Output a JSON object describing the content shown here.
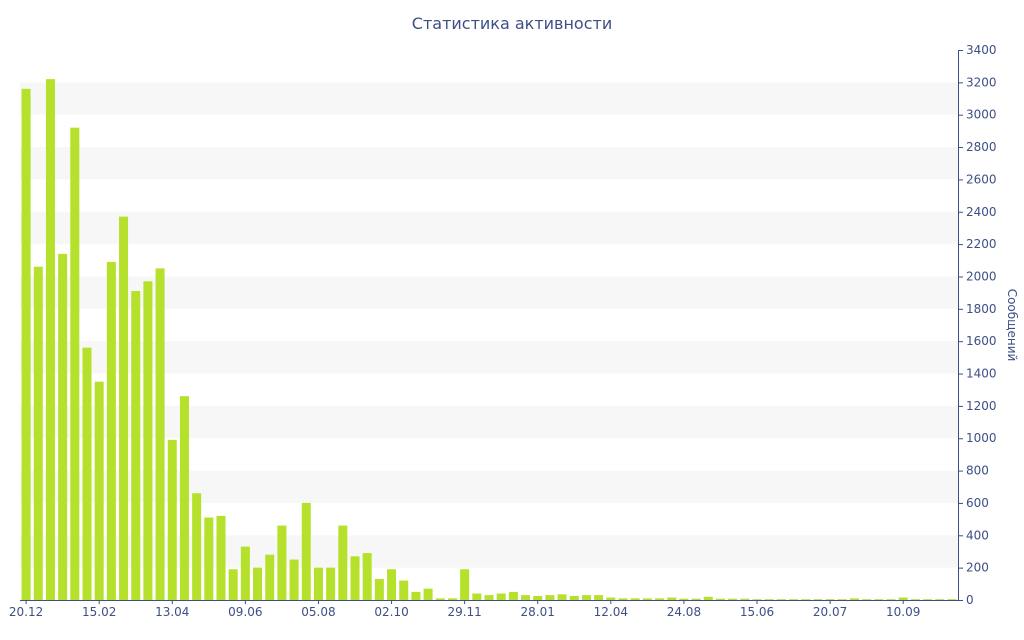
{
  "chart_data": {
    "type": "bar",
    "title": "Статистика активности",
    "xlabel": "",
    "ylabel": "Сообщений",
    "y_axis_side": "right",
    "ylim": [
      0,
      3400
    ],
    "y_ticks": [
      0,
      200,
      400,
      600,
      800,
      1000,
      1200,
      1400,
      1600,
      1800,
      2000,
      2200,
      2400,
      2600,
      2800,
      3000,
      3200,
      3400
    ],
    "grid": "alternating horizontal bands",
    "bar_color": "#b5e02b",
    "band_color": "#f7f7f7",
    "text_color": "#3d4f86",
    "x_tick_labels": [
      {
        "index": 0,
        "label": "20.12"
      },
      {
        "index": 6,
        "label": "15.02"
      },
      {
        "index": 12,
        "label": "13.04"
      },
      {
        "index": 18,
        "label": "09.06"
      },
      {
        "index": 24,
        "label": "05.08"
      },
      {
        "index": 30,
        "label": "02.10"
      },
      {
        "index": 36,
        "label": "29.11"
      },
      {
        "index": 42,
        "label": "28.01"
      },
      {
        "index": 48,
        "label": "12.04"
      },
      {
        "index": 54,
        "label": "24.08"
      },
      {
        "index": 60,
        "label": "15.06"
      },
      {
        "index": 66,
        "label": "20.07"
      },
      {
        "index": 72,
        "label": "10.09"
      }
    ],
    "values": [
      3160,
      2060,
      3220,
      2140,
      2920,
      1560,
      1350,
      2090,
      2370,
      1910,
      1970,
      2050,
      990,
      1260,
      660,
      510,
      520,
      190,
      330,
      200,
      280,
      460,
      250,
      600,
      200,
      200,
      460,
      270,
      290,
      130,
      190,
      120,
      50,
      70,
      10,
      10,
      190,
      40,
      30,
      40,
      50,
      30,
      25,
      30,
      35,
      25,
      30,
      30,
      15,
      10,
      10,
      10,
      10,
      15,
      8,
      8,
      20,
      8,
      8,
      8,
      5,
      5,
      5,
      5,
      5,
      5,
      5,
      5,
      10,
      5,
      5,
      5,
      15,
      5,
      5,
      5,
      5
    ]
  }
}
